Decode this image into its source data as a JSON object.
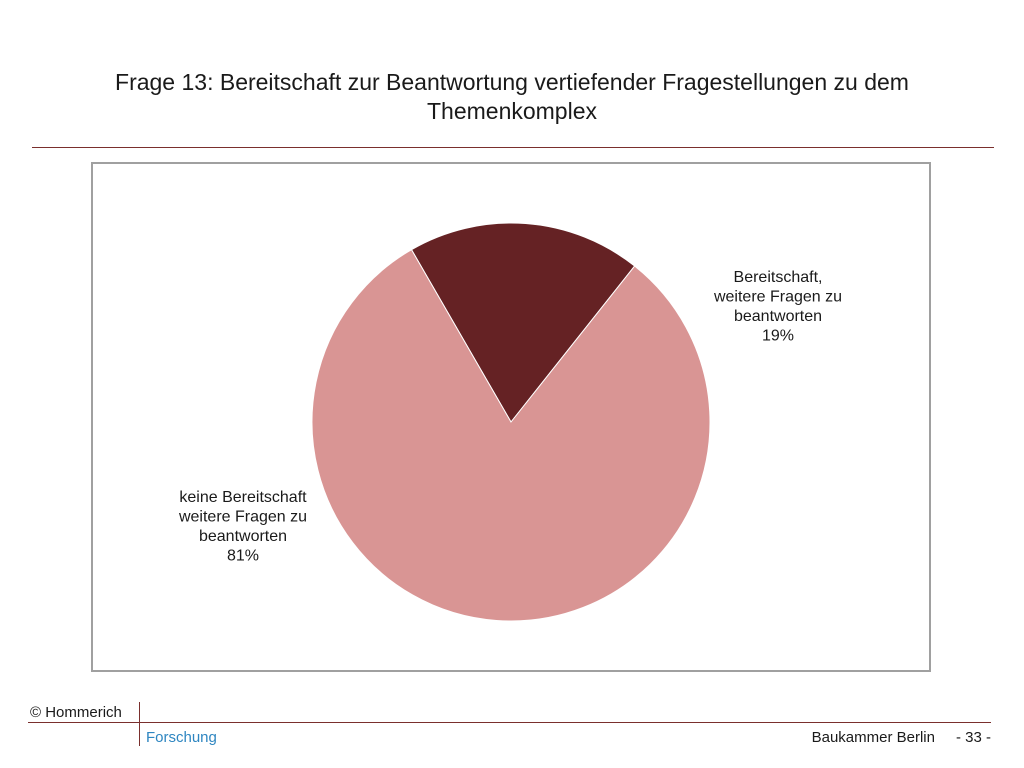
{
  "slide": {
    "title": "Frage 13: Bereitschaft zur Beantwortung vertiefender Fragestellungen zu dem Themenkomplex"
  },
  "chart_data": {
    "type": "pie",
    "title": "",
    "slices": [
      {
        "label_lines": [
          "Bereitschaft,",
          "weitere Fragen zu",
          "beantworten",
          "19%"
        ],
        "value": 19,
        "color": "#652224"
      },
      {
        "label_lines": [
          "keine Bereitschaft",
          "weitere Fragen zu",
          "beantworten",
          "81%"
        ],
        "value": 81,
        "color": "#d99594"
      }
    ],
    "legend": "none"
  },
  "footer": {
    "copyright": "© Hommerich",
    "department": "Forschung",
    "organization": "Baukammer Berlin",
    "page": "- 33 -"
  },
  "colors": {
    "rule": "#7a2f2d",
    "department_text": "#2e86c1"
  }
}
